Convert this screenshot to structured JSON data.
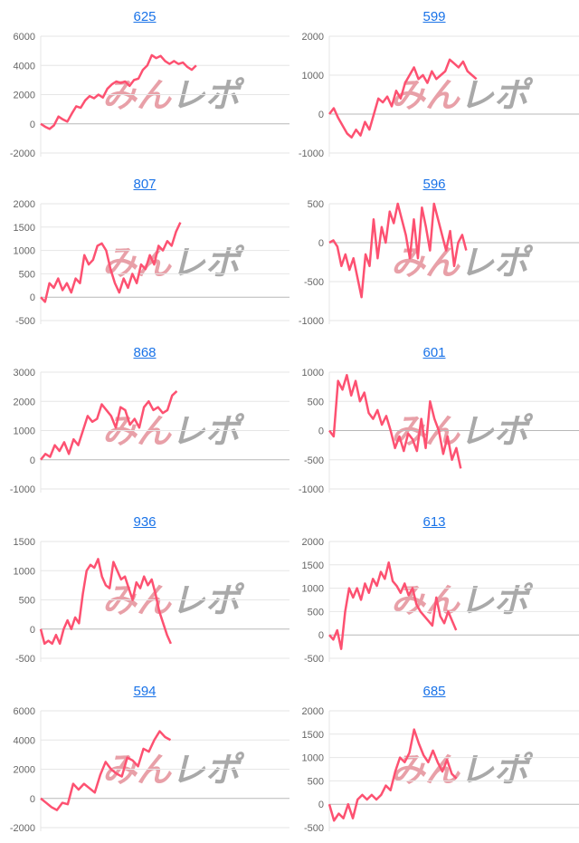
{
  "watermark": {
    "part1": "みん",
    "part2": "レポ",
    "color1": "#e8a0a8",
    "color2": "#a9a9a9"
  },
  "line_color": "#fd5171",
  "chart_data": [
    {
      "type": "line",
      "title": "625",
      "ylim": [
        -2000,
        6000
      ],
      "yticks": [
        6000,
        4000,
        2000,
        0,
        -2000
      ],
      "x_max": 56,
      "values": [
        0,
        -200,
        -350,
        -100,
        500,
        300,
        150,
        700,
        1200,
        1100,
        1600,
        1900,
        1750,
        2000,
        1800,
        2400,
        2700,
        2900,
        2800,
        2900,
        2600,
        3000,
        3100,
        3700,
        4000,
        4700,
        4500,
        4650,
        4300,
        4100,
        4300,
        4100,
        4200,
        3900,
        3700,
        4000
      ]
    },
    {
      "type": "line",
      "title": "599",
      "ylim": [
        -1000,
        2000
      ],
      "yticks": [
        2000,
        1000,
        0,
        -1000
      ],
      "x_max": 56,
      "values": [
        0,
        150,
        -100,
        -300,
        -500,
        -600,
        -400,
        -550,
        -200,
        -400,
        0,
        400,
        300,
        450,
        200,
        600,
        400,
        800,
        1000,
        1200,
        900,
        1000,
        800,
        1100,
        900,
        1000,
        1100,
        1400,
        1300,
        1200,
        1350,
        1100,
        1000,
        900
      ]
    },
    {
      "type": "line",
      "title": "807",
      "ylim": [
        -500,
        2000
      ],
      "yticks": [
        2000,
        1500,
        1000,
        500,
        0,
        -500
      ],
      "x_max": 57,
      "values": [
        0,
        -100,
        300,
        200,
        400,
        150,
        300,
        100,
        400,
        300,
        900,
        700,
        800,
        1100,
        1150,
        1000,
        600,
        300,
        100,
        400,
        200,
        500,
        300,
        700,
        600,
        900,
        700,
        1100,
        1000,
        1200,
        1100,
        1400,
        1600
      ]
    },
    {
      "type": "line",
      "title": "596",
      "ylim": [
        -1000,
        500
      ],
      "yticks": [
        500,
        0,
        -500,
        -1000
      ],
      "x_max": 62,
      "values": [
        0,
        30,
        -50,
        -300,
        -150,
        -350,
        -200,
        -450,
        -700,
        -150,
        -300,
        300,
        -200,
        200,
        0,
        400,
        250,
        500,
        300,
        100,
        -200,
        300,
        -200,
        450,
        200,
        -100,
        500,
        300,
        100,
        -100,
        150,
        -300,
        0,
        100,
        -100
      ]
    },
    {
      "type": "line",
      "title": "868",
      "ylim": [
        -1000,
        3000
      ],
      "yticks": [
        3000,
        2000,
        1000,
        0,
        -1000
      ],
      "x_max": 53,
      "values": [
        0,
        200,
        100,
        500,
        300,
        600,
        200,
        700,
        500,
        1000,
        1500,
        1300,
        1400,
        1900,
        1700,
        1500,
        1100,
        1800,
        1700,
        1200,
        1400,
        1100,
        1800,
        2000,
        1700,
        1800,
        1600,
        1700,
        2200,
        2350
      ]
    },
    {
      "type": "line",
      "title": "601",
      "ylim": [
        -1000,
        1000
      ],
      "yticks": [
        1000,
        500,
        0,
        -500,
        -1000
      ],
      "x_max": 57,
      "values": [
        0,
        -100,
        850,
        700,
        950,
        600,
        850,
        500,
        650,
        300,
        200,
        350,
        100,
        250,
        0,
        -300,
        -100,
        -350,
        -50,
        -150,
        -350,
        200,
        -300,
        500,
        200,
        0,
        -400,
        -100,
        -500,
        -300,
        -650
      ]
    },
    {
      "type": "line",
      "title": "936",
      "ylim": [
        -500,
        1500
      ],
      "yticks": [
        1500,
        1000,
        500,
        0,
        -500
      ],
      "x_max": 65,
      "values": [
        0,
        -250,
        -200,
        -250,
        -100,
        -250,
        0,
        150,
        0,
        200,
        100,
        600,
        1000,
        1100,
        1050,
        1200,
        900,
        750,
        700,
        1150,
        1000,
        850,
        900,
        700,
        500,
        800,
        700,
        900,
        750,
        850,
        600,
        300,
        100,
        -100,
        -250
      ]
    },
    {
      "type": "line",
      "title": "613",
      "ylim": [
        -500,
        2000
      ],
      "yticks": [
        2000,
        1500,
        1000,
        500,
        0,
        -500
      ],
      "x_max": 63,
      "values": [
        0,
        -100,
        100,
        -300,
        500,
        1000,
        800,
        1000,
        750,
        1100,
        900,
        1200,
        1050,
        1350,
        1200,
        1550,
        1150,
        1050,
        900,
        1100,
        850,
        1000,
        650,
        500,
        400,
        300,
        200,
        800,
        400,
        250,
        500,
        300,
        100
      ]
    },
    {
      "type": "line",
      "title": "594",
      "ylim": [
        -2000,
        6000
      ],
      "yticks": [
        6000,
        4000,
        2000,
        0,
        -2000
      ],
      "x_max": 46,
      "values": [
        0,
        -300,
        -600,
        -800,
        -300,
        -400,
        1000,
        600,
        1000,
        700,
        400,
        1600,
        2500,
        2000,
        1700,
        1500,
        2800,
        2600,
        2200,
        3400,
        3200,
        4000,
        4600,
        4200,
        4000
      ]
    },
    {
      "type": "line",
      "title": "685",
      "ylim": [
        -500,
        2000
      ],
      "yticks": [
        2000,
        1500,
        1000,
        500,
        0,
        -500
      ],
      "x_max": 53,
      "values": [
        0,
        -350,
        -200,
        -300,
        0,
        -300,
        100,
        200,
        100,
        200,
        100,
        200,
        400,
        300,
        700,
        1000,
        900,
        1100,
        1600,
        1300,
        1050,
        900,
        1150,
        900,
        700,
        950,
        650,
        550
      ]
    }
  ]
}
